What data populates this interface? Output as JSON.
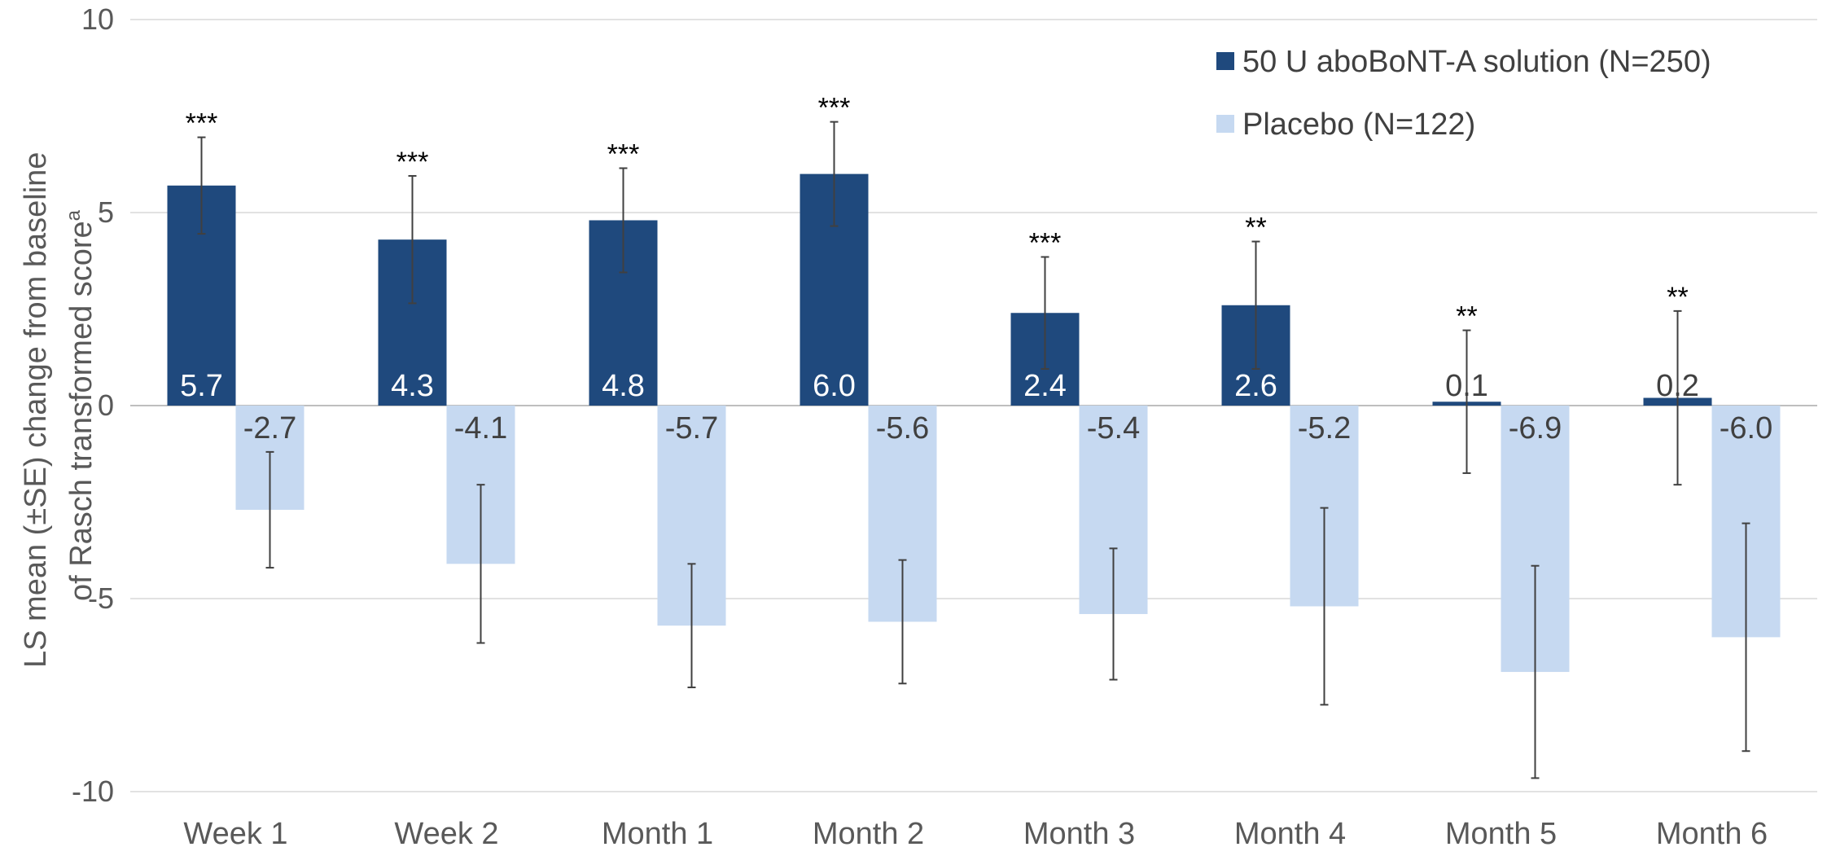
{
  "chart_data": {
    "type": "bar",
    "categories": [
      "Week 1",
      "Week 2",
      "Month 1",
      "Month 2",
      "Month 3",
      "Month 4",
      "Month 5",
      "Month 6"
    ],
    "series": [
      {
        "name": "50 U aboBoNT-A solution (N=250)",
        "color": "#1f497d",
        "values": [
          5.7,
          4.3,
          4.8,
          6.0,
          2.4,
          2.6,
          0.1,
          0.2
        ],
        "labels": [
          "5.7",
          "4.3",
          "4.8",
          "6.0",
          "2.4",
          "2.6",
          "0.1",
          "0.2"
        ],
        "se": [
          1.25,
          1.65,
          1.35,
          1.35,
          1.45,
          1.65,
          1.85,
          2.25
        ],
        "significance": [
          "***",
          "***",
          "***",
          "***",
          "***",
          "**",
          "**",
          "**"
        ]
      },
      {
        "name": "Placebo (N=122)",
        "color": "#c6d9f1",
        "values": [
          -2.7,
          -4.1,
          -5.7,
          -5.6,
          -5.4,
          -5.2,
          -6.9,
          -6.0
        ],
        "labels": [
          "-2.7",
          "-4.1",
          "-5.7",
          "-5.6",
          "-5.4",
          "-5.2",
          "-6.9",
          "-6.0"
        ],
        "se": [
          1.5,
          2.05,
          1.6,
          1.6,
          1.7,
          2.55,
          2.75,
          2.95
        ],
        "significance": [
          "",
          "",
          "",
          "",
          "",
          "",
          "",
          ""
        ]
      }
    ],
    "ylabel_line1": "LS mean (±SE) change from baseline",
    "ylabel_line2": "of Rasch transformed score",
    "ylabel_superscript": "a",
    "ylim": [
      -10,
      10
    ],
    "yticks": [
      10,
      5,
      0,
      -5,
      -10
    ],
    "ytick_labels": [
      "10",
      "5",
      "0",
      "-5",
      "-10"
    ],
    "grid": true,
    "legend_position": "top-right"
  }
}
